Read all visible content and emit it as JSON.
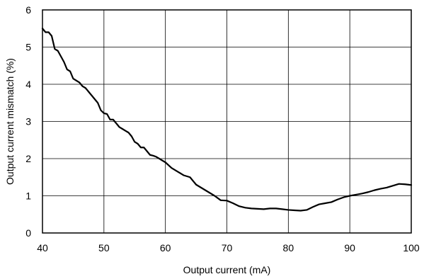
{
  "chart_data": {
    "type": "line",
    "title": "",
    "xlabel": "Output current (mA)",
    "ylabel": "Output current mismatch (%)",
    "xlim": [
      40,
      100
    ],
    "ylim": [
      0,
      6
    ],
    "x_ticks": [
      "40",
      "50",
      "60",
      "70",
      "80",
      "90",
      "100"
    ],
    "y_ticks": [
      "0",
      "1",
      "2",
      "3",
      "4",
      "5",
      "6"
    ],
    "grid": true,
    "legend": "none",
    "line_color": "#000000",
    "series": [
      {
        "x": [
          40,
          40.5,
          41,
          41.5,
          42,
          42.5,
          43,
          43.5,
          44,
          44.5,
          45,
          45.5,
          46,
          46.5,
          47,
          47.5,
          48,
          48.5,
          49,
          49.5,
          50,
          50.5,
          51,
          51.5,
          52,
          52.5,
          53,
          53.5,
          54,
          54.5,
          55,
          55.5,
          56,
          56.5,
          57,
          57.5,
          58,
          58.5,
          59,
          59.5,
          60,
          61,
          62,
          63,
          64,
          65,
          66,
          67,
          68,
          69,
          70,
          71,
          72,
          73,
          74,
          75,
          76,
          77,
          78,
          79,
          80,
          81,
          82,
          83,
          84,
          85,
          86,
          87,
          88,
          89,
          90,
          91,
          92,
          93,
          94,
          95,
          96,
          97,
          98,
          99,
          100
        ],
        "y": [
          5.5,
          5.4,
          5.4,
          5.3,
          4.95,
          4.9,
          4.75,
          4.6,
          4.4,
          4.35,
          4.15,
          4.1,
          4.05,
          3.95,
          3.9,
          3.8,
          3.7,
          3.6,
          3.5,
          3.3,
          3.22,
          3.2,
          3.05,
          3.05,
          2.95,
          2.85,
          2.8,
          2.75,
          2.7,
          2.6,
          2.45,
          2.4,
          2.3,
          2.3,
          2.2,
          2.1,
          2.08,
          2.05,
          2.0,
          1.95,
          1.9,
          1.75,
          1.65,
          1.55,
          1.5,
          1.3,
          1.2,
          1.1,
          1.0,
          0.88,
          0.87,
          0.8,
          0.72,
          0.68,
          0.66,
          0.65,
          0.64,
          0.66,
          0.66,
          0.64,
          0.62,
          0.61,
          0.6,
          0.62,
          0.7,
          0.77,
          0.8,
          0.83,
          0.9,
          0.96,
          1.0,
          1.03,
          1.06,
          1.1,
          1.15,
          1.19,
          1.22,
          1.27,
          1.32,
          1.31,
          1.29
        ]
      }
    ]
  }
}
